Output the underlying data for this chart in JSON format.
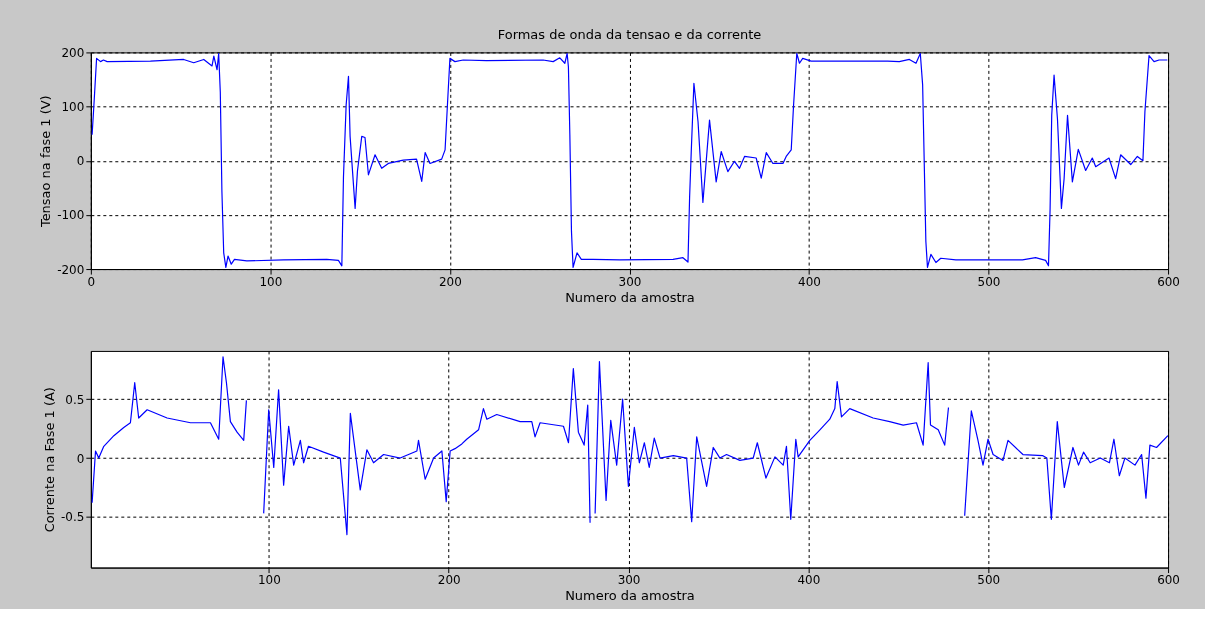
{
  "chart_data": [
    {
      "type": "line",
      "title": "Formas de onda da tensao e da corrente",
      "xlabel": "Numero da amostra",
      "ylabel": "Tensao na fase 1 (V)",
      "xlim": [
        0,
        600
      ],
      "ylim": [
        -200,
        200
      ],
      "xticks": [
        0,
        100,
        200,
        300,
        400,
        500,
        600
      ],
      "yticks": [
        -200,
        -100,
        0,
        100,
        200
      ],
      "grid": true,
      "line_style": "solid",
      "marker": "none",
      "x": [
        0.7,
        1.6,
        3.2,
        5.4,
        7,
        9.1,
        33.2,
        51.7,
        57.3,
        62.9,
        67.5,
        68.5,
        70.3,
        71.2,
        72.1,
        73,
        74,
        75.2,
        76.4,
        78.2,
        80,
        86.9,
        107.3,
        131.4,
        137.9,
        139.8,
        140.7,
        142.2,
        143.5,
        144.4,
        147.2,
        148.5,
        150.9,
        152.7,
        154.6,
        158.3,
        162,
        165.7,
        174,
        181.4,
        184.3,
        186.2,
        188.9,
        195.4,
        197.3,
        198.6,
        200,
        202.8,
        207.4,
        220.4,
        251.9,
        257.5,
        261.2,
        264,
        265.3,
        266,
        266.8,
        267.7,
        268.6,
        270.8,
        273.2,
        279.7,
        294.6,
        324.3,
        329.8,
        332.6,
        333.5,
        334.4,
        335.9,
        338.2,
        340.9,
        342.7,
        344.6,
        348.3,
        351.1,
        354.8,
        358.5,
        361.3,
        364.1,
        370.6,
        373.4,
        376.2,
        379.9,
        385.5,
        387.3,
        390.1,
        391.4,
        393.2,
        394.7,
        396.5,
        401.2,
        426.2,
        443.8,
        450.3,
        455.9,
        459.6,
        462,
        463.3,
        465.1,
        466,
        467.9,
        470.7,
        473.4,
        481.8,
        518.9,
        526.2,
        531.8,
        533.4,
        534.3,
        535.2,
        536.5,
        538.4,
        540.6,
        542.1,
        544,
        546.7,
        550,
        554.1,
        557.8,
        559.7,
        567.1,
        570.8,
        573.6,
        579.2,
        582.9,
        586,
        587.1,
        589.4,
        592.2,
        595,
        599.6
      ],
      "series": [
        {
          "color": "#0000ff",
          "values": [
            48,
            97,
            189,
            183,
            186,
            183,
            184,
            187,
            181,
            187,
            175,
            193,
            168,
            198,
            127,
            -57,
            -170,
            -197,
            -176,
            -191,
            -182,
            -185,
            -183,
            -182,
            -184,
            -194,
            -31,
            103,
            156,
            45,
            -88,
            -19,
            45,
            43,
            -26,
            11,
            -14,
            -5,
            1,
            3,
            -38,
            15,
            -5,
            3,
            20,
            102,
            189,
            183,
            186,
            185,
            186,
            183,
            190,
            180,
            198,
            173,
            48,
            -130,
            -197,
            -170,
            -182,
            -182,
            -183,
            -182,
            -179,
            -187,
            -68,
            15,
            143,
            72,
            -77,
            -3,
            75,
            -39,
            17,
            -20,
            -1,
            -14,
            8,
            5,
            -32,
            15,
            -5,
            -5,
            8,
            20,
            102,
            198,
            180,
            189,
            184,
            184,
            184,
            183,
            187,
            180,
            198,
            140,
            -149,
            -197,
            -173,
            -188,
            -180,
            -183,
            -183,
            -179,
            -184,
            -194,
            -88,
            84,
            158,
            77,
            -88,
            -33,
            84,
            -39,
            21,
            -18,
            5,
            -11,
            5,
            -33,
            11,
            -7,
            8,
            0,
            90,
            194,
            183,
            186,
            186
          ]
        }
      ]
    },
    {
      "type": "line",
      "xlabel": "Numero da amostra",
      "ylabel": "Corrente na Fase 1 (A)",
      "xlim": [
        1,
        600
      ],
      "ylim": [
        -0.93,
        0.91
      ],
      "xticks": [
        100,
        200,
        300,
        400,
        500,
        600
      ],
      "yticks": [
        -0.5,
        0,
        0.5
      ],
      "grid": true,
      "line_style": "solid",
      "marker": "none",
      "x": [
        1.7,
        3.6,
        5.4,
        8.2,
        13.8,
        19.3,
        23,
        25.4,
        27.6,
        32.3,
        43.4,
        56.4,
        67.5,
        72.1,
        74.5,
        76.4,
        78.6,
        82.3,
        86,
        87.5,
        88.8,
        91.6,
        93.4,
        97.1,
        99.9,
        102.7,
        105.4,
        108.2,
        111,
        113.8,
        117.5,
        119.3,
        122,
        130.4,
        139.7,
        143.4,
        145.3,
        150.8,
        154.5,
        158.2,
        163.8,
        173,
        182.3,
        183.2,
        186.9,
        191.6,
        196.2,
        198.6,
        200.8,
        203.5,
        207.3,
        210,
        216.6,
        219.3,
        221.2,
        226.7,
        239.7,
        246.2,
        248,
        250.8,
        263.8,
        266.6,
        269.3,
        272.1,
        275.3,
        277.3,
        278.6,
        280.1,
        281.4,
        283.8,
        287.5,
        290.1,
        293.4,
        296.7,
        299.9,
        303.2,
        306,
        308.8,
        311.5,
        314.3,
        317.5,
        324.9,
        332.3,
        335.1,
        337.9,
        343.4,
        347.1,
        350.8,
        354.5,
        361.9,
        369.3,
        371.6,
        376.4,
        381.4,
        386,
        387.8,
        390.2,
        393,
        394.3,
        400.8,
        406.4,
        411.9,
        414.7,
        416,
        418.4,
        423,
        436,
        445.2,
        452.7,
        460.1,
        463.8,
        466.6,
        467.9,
        472.2,
        475.8,
        477.9,
        479.9,
        484.2,
        486.9,
        490.6,
        494.3,
        497.1,
        499.9,
        502.7,
        508.2,
        511,
        519.3,
        530.4,
        532.6,
        535.1,
        538.4,
        542.3,
        547.1,
        550.2,
        553,
        556.7,
        562.3,
        567.4,
        569.9,
        572.9,
        576,
        581.6,
        585.3,
        587.7,
        589.9,
        593.6,
        599.9
      ],
      "series": [
        {
          "color": "#0000ff",
          "values": [
            -0.38,
            0.06,
            0.0,
            0.1,
            0.19,
            0.26,
            0.3,
            0.64,
            0.34,
            0.41,
            0.34,
            0.3,
            0.3,
            0.16,
            0.86,
            0.64,
            0.31,
            0.22,
            0.15,
            0.49,
            null,
            null,
            null,
            -0.47,
            0.41,
            -0.08,
            0.58,
            -0.23,
            0.27,
            -0.06,
            0.15,
            -0.04,
            0.1,
            0.05,
            0.0,
            -0.65,
            0.38,
            -0.27,
            0.07,
            -0.04,
            0.03,
            0.0,
            0.06,
            0.15,
            -0.18,
            0.0,
            0.06,
            -0.37,
            0.06,
            0.08,
            0.12,
            0.16,
            0.24,
            0.42,
            0.33,
            0.37,
            0.31,
            0.31,
            0.18,
            0.3,
            0.27,
            0.13,
            0.76,
            0.22,
            0.11,
            0.45,
            -0.55,
            null,
            -0.47,
            0.82,
            -0.36,
            0.32,
            -0.06,
            0.5,
            -0.24,
            0.26,
            -0.04,
            0.13,
            -0.08,
            0.17,
            0.0,
            0.02,
            0.0,
            -0.54,
            0.18,
            -0.24,
            0.09,
            0.0,
            0.03,
            -0.02,
            0.0,
            0.13,
            -0.17,
            0.01,
            -0.06,
            0.1,
            -0.52,
            0.16,
            0.01,
            0.15,
            0.24,
            0.33,
            0.42,
            0.65,
            0.35,
            0.42,
            0.34,
            0.31,
            0.28,
            0.3,
            0.11,
            0.81,
            0.28,
            0.24,
            0.11,
            0.43,
            null,
            null,
            -0.49,
            0.4,
            0.15,
            -0.06,
            0.16,
            0.03,
            -0.02,
            0.15,
            0.03,
            0.02,
            0.0,
            -0.52,
            0.31,
            -0.25,
            0.09,
            -0.06,
            0.05,
            -0.04,
            0.0,
            -0.04,
            0.16,
            -0.15,
            0.0,
            -0.06,
            0.03,
            -0.34,
            0.11,
            0.09,
            0.19
          ]
        }
      ]
    }
  ]
}
